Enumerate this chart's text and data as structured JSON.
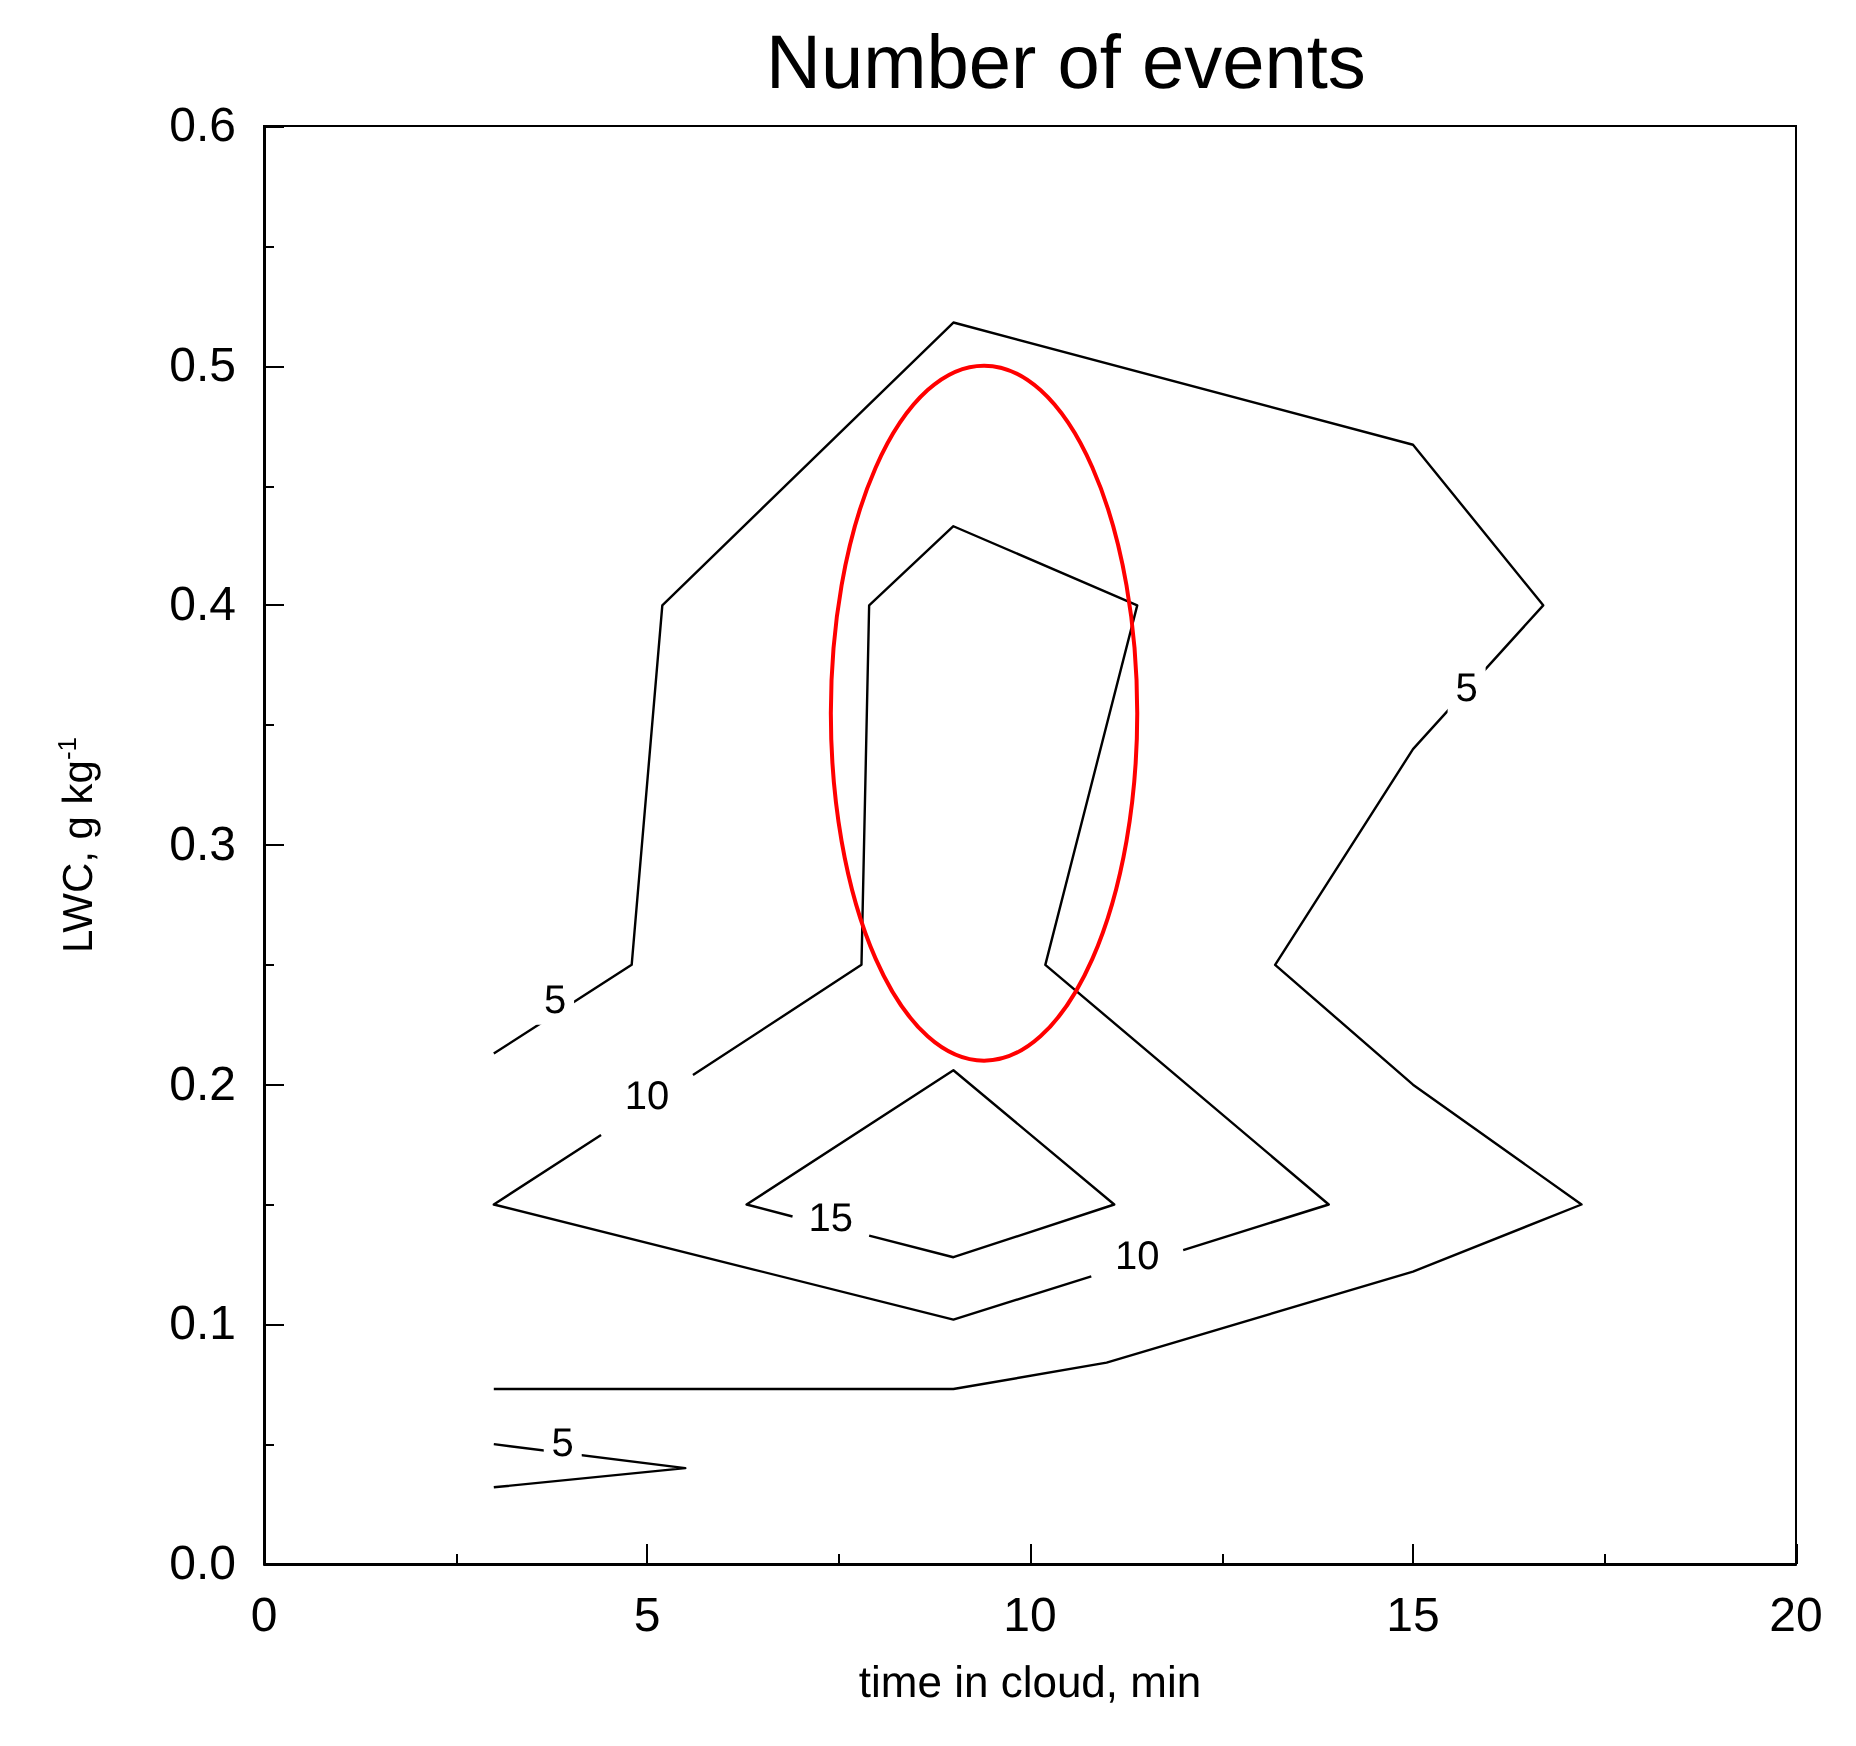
{
  "chart_data": {
    "type": "line",
    "title": "Number of events",
    "xlabel": "time in cloud, min",
    "ylabel": "LWC, g kg$^{-1}$",
    "xlim": [
      0,
      20
    ],
    "xticks": [
      0,
      5,
      10,
      15,
      20
    ],
    "ylim": [
      0,
      0.6
    ],
    "yticks": [
      {
        "value": 0,
        "label": "0.0"
      },
      0.1,
      0.2,
      0.3,
      0.4,
      0.5,
      0.6
    ],
    "grid": false,
    "marker": "none",
    "line_style": "solid",
    "series": [
      {
        "color": "#000000",
        "x": [
          3.0,
          4.8,
          5.2,
          9.0,
          15.0,
          16.7,
          15.0,
          13.2,
          15.0,
          17.2,
          15.0,
          11.0,
          9.0,
          3.0
        ],
        "values": [
          0.213,
          0.25,
          0.4,
          0.518,
          0.467,
          0.4,
          0.34,
          0.25,
          0.2,
          0.15,
          0.122,
          0.084,
          0.073,
          0.073
        ]
      },
      {
        "color": "#000000",
        "x": [
          3.0,
          5.5,
          3.0
        ],
        "values": [
          0.032,
          0.04,
          0.05
        ]
      },
      {
        "color": "#000000",
        "x": [
          5.6,
          7.8,
          7.9,
          9.0,
          11.4,
          10.2,
          13.9,
          12.0
        ],
        "values": [
          0.204,
          0.25,
          0.4,
          0.433,
          0.4,
          0.25,
          0.15,
          0.131
        ]
      },
      {
        "color": "#000000",
        "x": [
          10.8,
          9.0,
          3.0,
          4.4
        ],
        "values": [
          0.12,
          0.102,
          0.15,
          0.179
        ]
      },
      {
        "color": "#000000",
        "x": [
          7.9,
          9.0,
          11.1,
          9.0,
          6.3,
          6.9
        ],
        "values": [
          0.137,
          0.128,
          0.15,
          0.206,
          0.15,
          0.145
        ]
      }
    ],
    "annotations": [
      {
        "text": "5",
        "x": 3.8,
        "y": 0.235
      },
      {
        "text": "10",
        "x": 5.0,
        "y": 0.195
      },
      {
        "text": "15",
        "x": 7.4,
        "y": 0.144
      },
      {
        "text": "10",
        "x": 11.4,
        "y": 0.128
      },
      {
        "text": "5",
        "x": 15.7,
        "y": 0.365
      },
      {
        "text": "5",
        "x": 3.9,
        "y": 0.05
      }
    ]
  }
}
